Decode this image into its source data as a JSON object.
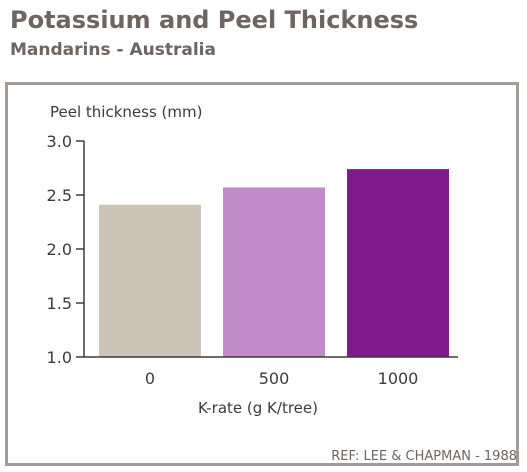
{
  "header": {
    "title": "Potassium and Peel Thickness",
    "subtitle": "Mandarins - Australia"
  },
  "footer": {
    "reference": "REF: LEE & CHAPMAN - 1988"
  },
  "chart_data": {
    "type": "bar",
    "title": "",
    "ylabel": "Peel thickness (mm)",
    "xlabel": "K-rate (g K/tree)",
    "categories": [
      "0",
      "500",
      "1000"
    ],
    "values": [
      2.41,
      2.57,
      2.74
    ],
    "ylim": [
      1.0,
      3.0
    ],
    "yticks": [
      "1.0",
      "1.5",
      "2.0",
      "2.5",
      "3.0"
    ],
    "grid": false,
    "legend": "none",
    "colors": [
      "#cdc3b7",
      "#c08cc7",
      "#7e1a8c"
    ]
  }
}
